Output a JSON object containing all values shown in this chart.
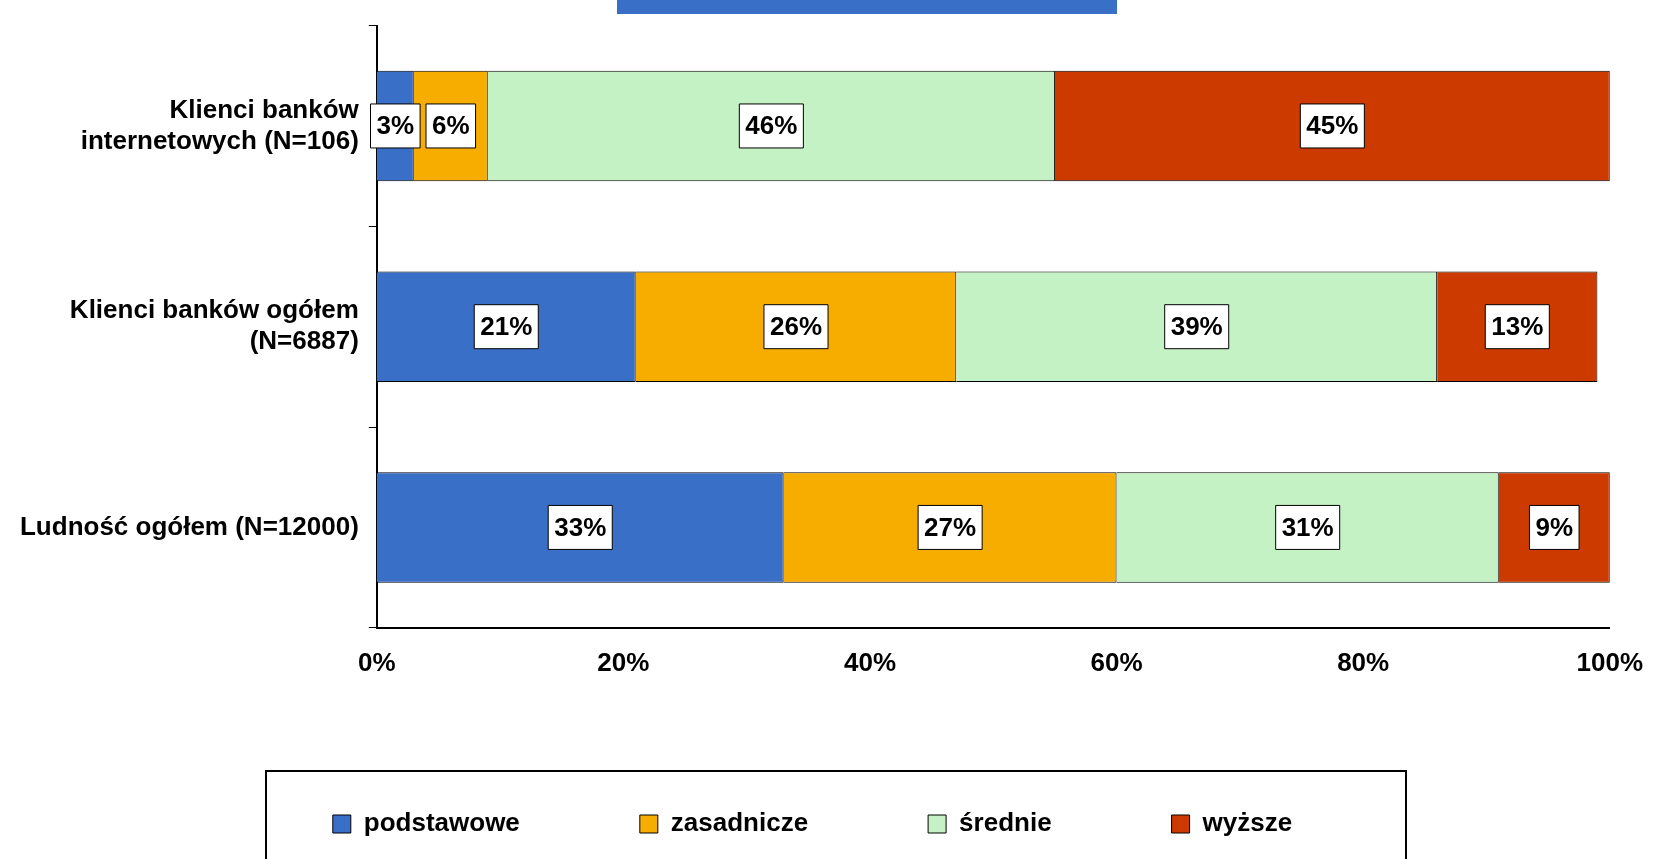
{
  "chart_data": {
    "type": "bar",
    "orientation": "horizontal",
    "stacked": true,
    "categories": [
      "Klienci banków internetowych (N=106)",
      "Klienci banków ogółem (N=6887)",
      "Ludność ogółem (N=12000)"
    ],
    "series": [
      {
        "name": "podstawowe",
        "color": "#3a6fc8",
        "values": [
          3,
          21,
          33
        ],
        "value_labels": [
          "3%",
          "21%",
          "33%"
        ]
      },
      {
        "name": "zasadnicze",
        "color": "#f7ad00",
        "values": [
          6,
          26,
          27
        ],
        "value_labels": [
          "6%",
          "26%",
          "27%"
        ]
      },
      {
        "name": "średnie",
        "color": "#c4f2c4",
        "values": [
          46,
          39,
          31
        ],
        "value_labels": [
          "46%",
          "39%",
          "31%"
        ]
      },
      {
        "name": "wyższe",
        "color": "#cc3a00",
        "values": [
          45,
          13,
          9
        ],
        "value_labels": [
          "45%",
          "13%",
          "9%"
        ]
      }
    ],
    "xlim": [
      0,
      100
    ],
    "xticks": [
      {
        "value": 0,
        "label": "0%"
      },
      {
        "value": 20,
        "label": "20%"
      },
      {
        "value": 40,
        "label": "40%"
      },
      {
        "value": 60,
        "label": "60%"
      },
      {
        "value": 80,
        "label": "80%"
      },
      {
        "value": 100,
        "label": "100%"
      }
    ],
    "grid": false,
    "legend": "bottom"
  }
}
